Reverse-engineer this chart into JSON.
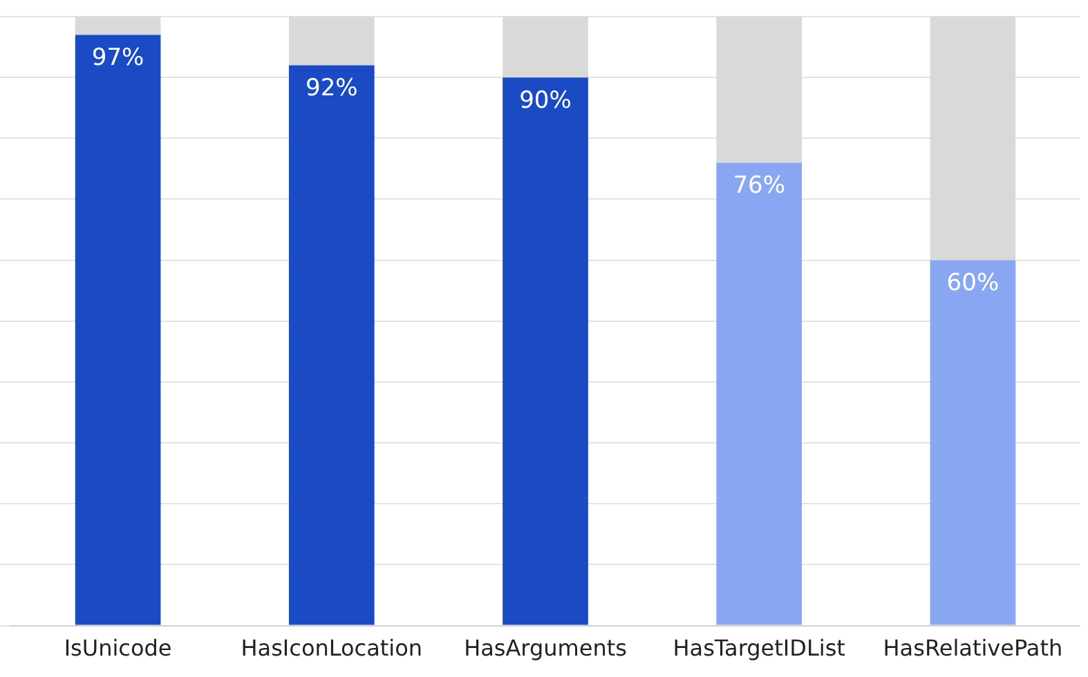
{
  "chart_data": {
    "type": "bar",
    "stacked": true,
    "categories": [
      "IsUnicode",
      "HasIconLocation",
      "HasArguments",
      "HasTargetIDList",
      "HasRelativePath"
    ],
    "series": [
      {
        "colors": [
          "#1a4bc4",
          "#1a4bc4",
          "#1a4bc4",
          "#88a6f2",
          "#88a6f2"
        ],
        "values": [
          97,
          92,
          90,
          76,
          60
        ],
        "value_labels": [
          "97%",
          "92%",
          "90%",
          "76%",
          "60%"
        ]
      },
      {
        "color": "#d9d9d9",
        "values": [
          3,
          8,
          10,
          24,
          40
        ]
      }
    ],
    "ylim": [
      0,
      100
    ],
    "yticks": [
      {
        "value": 0,
        "label": null
      },
      {
        "value": 10,
        "label": null
      },
      {
        "value": 20,
        "label": null
      },
      {
        "value": 30,
        "label": null
      },
      {
        "value": 40,
        "label": null
      },
      {
        "value": 50,
        "label": null
      },
      {
        "value": 60,
        "label": null
      },
      {
        "value": 70,
        "label": null
      },
      {
        "value": 80,
        "label": null
      },
      {
        "value": 90,
        "label": null
      },
      {
        "value": 100,
        "label": null
      }
    ],
    "tick_labels": "x",
    "grid": "y",
    "legend": false
  }
}
